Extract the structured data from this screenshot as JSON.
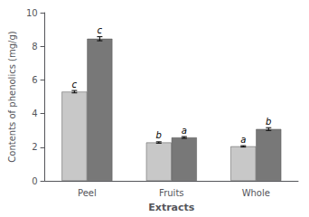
{
  "chart_data": {
    "type": "bar",
    "xlabel": "Extracts",
    "ylabel": "Contents of phenolics (mg/g)",
    "categories": [
      "Peel",
      "Fruits",
      "Whole"
    ],
    "series": [
      {
        "color": "#c8c8c8",
        "values": [
          5.3,
          2.28,
          2.05
        ],
        "errors": [
          0.07,
          0.04,
          0.04
        ],
        "labels": [
          "c",
          "b",
          "a"
        ]
      },
      {
        "color": "#787878",
        "values": [
          8.45,
          2.58,
          3.08
        ],
        "errors": [
          0.12,
          0.05,
          0.08
        ],
        "labels": [
          "c",
          "a",
          "b"
        ]
      }
    ],
    "ylim": [
      0,
      10
    ],
    "yticks": [
      0,
      2,
      4,
      6,
      8,
      10
    ],
    "grid": false
  }
}
